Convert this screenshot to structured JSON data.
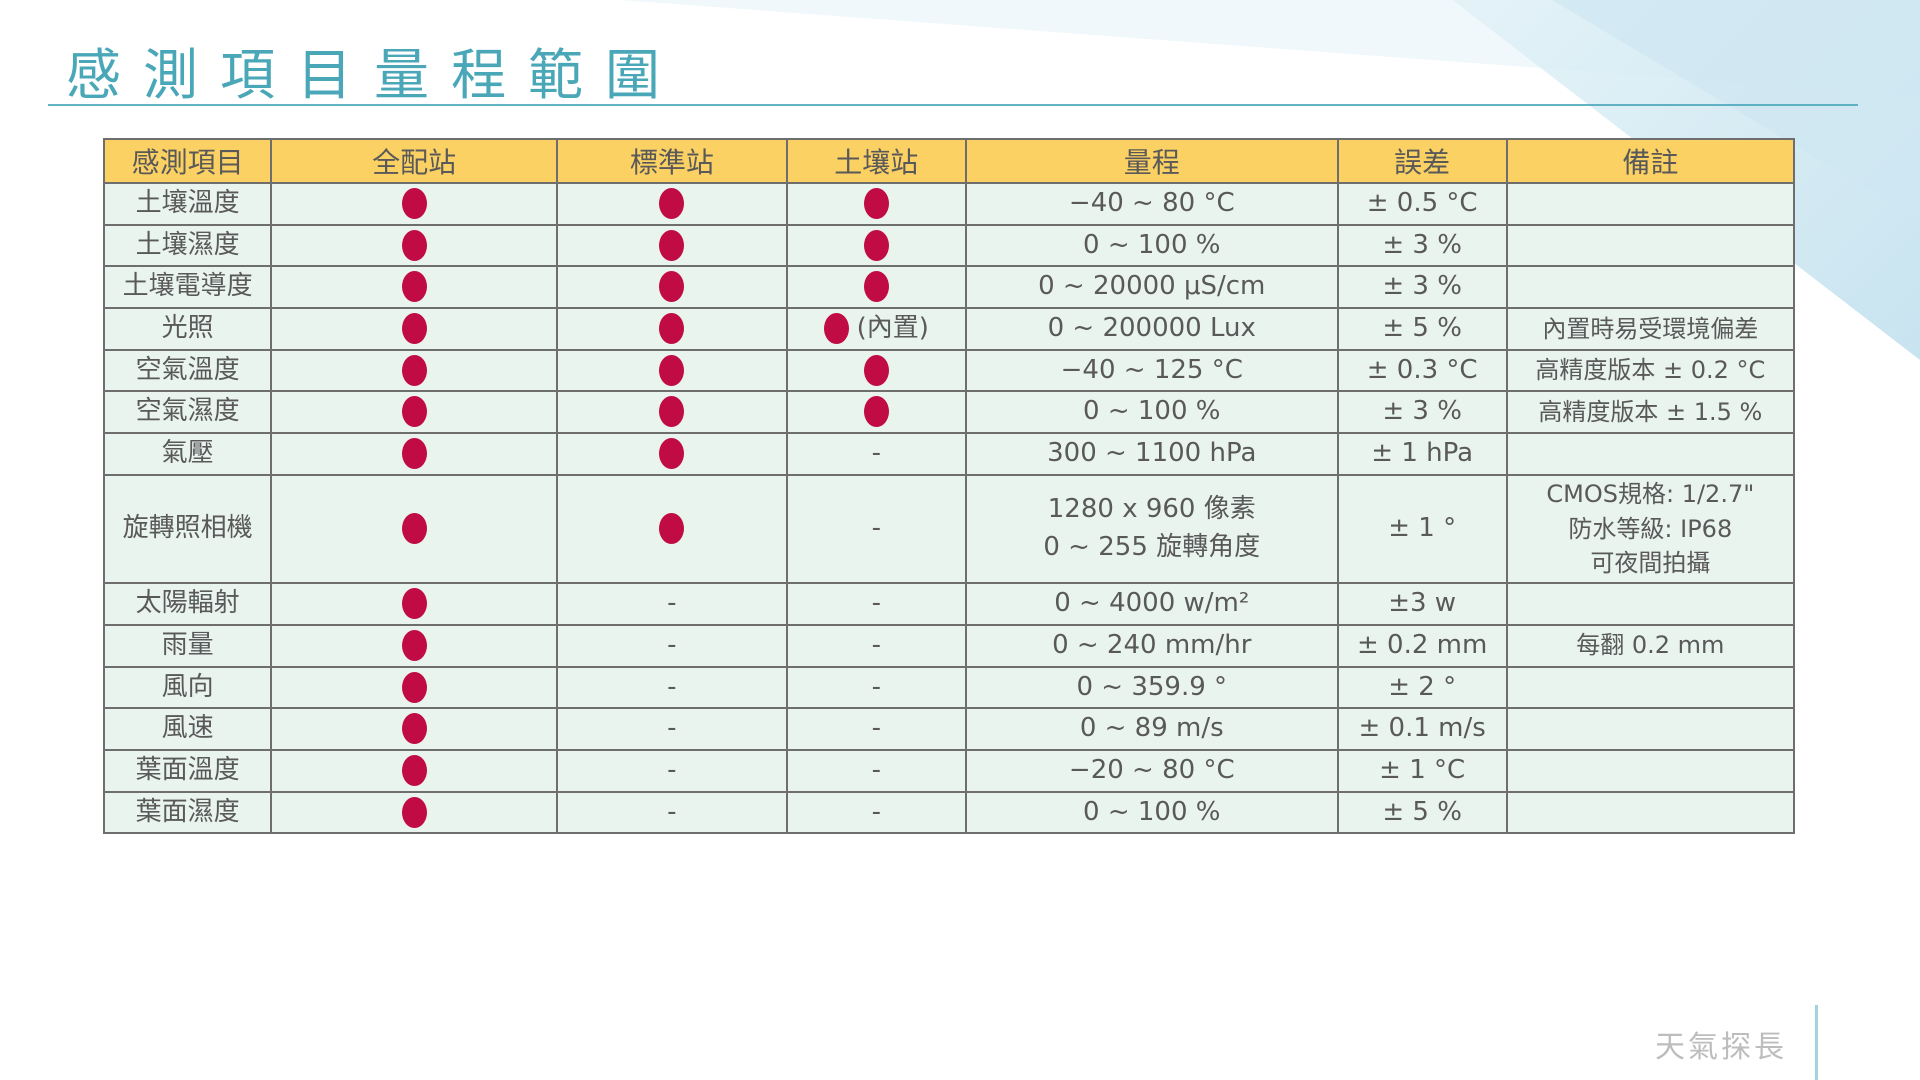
{
  "title": "感測項目量程範圍",
  "footer": {
    "brand": "天氣探長"
  },
  "table": {
    "headers": [
      "感測項目",
      "全配站",
      "標準站",
      "土壤站",
      "量程",
      "誤差",
      "備註"
    ],
    "col_widths": [
      "9.9%",
      "16.9%",
      "13.6%",
      "10.6%",
      "22.0%",
      "10.0%",
      "17.0%"
    ],
    "marker_legend": {
      "dot": "●",
      "none": "-"
    },
    "rows": [
      {
        "item": "土壤溫度",
        "stations": [
          "●",
          "●",
          "●"
        ],
        "range": "−40 ~ 80 °C",
        "error": "± 0.5 °C",
        "note": ""
      },
      {
        "item": "土壤濕度",
        "stations": [
          "●",
          "●",
          "●"
        ],
        "range": "0 ~ 100 %",
        "error": "± 3 %",
        "note": ""
      },
      {
        "item": "土壤電導度",
        "stations": [
          "●",
          "●",
          "●"
        ],
        "range": "0 ~ 20000 μS/cm",
        "error": "± 3 %",
        "note": ""
      },
      {
        "item": "光照",
        "stations": [
          "●",
          "●",
          "● (內置)"
        ],
        "range": "0 ~ 200000 Lux",
        "error": "± 5 %",
        "note": "內置時易受環境偏差"
      },
      {
        "item": "空氣溫度",
        "stations": [
          "●",
          "●",
          "●"
        ],
        "range": "−40 ~ 125 °C",
        "error": "± 0.3 °C",
        "note": "高精度版本 ± 0.2 °C"
      },
      {
        "item": "空氣濕度",
        "stations": [
          "●",
          "●",
          "●"
        ],
        "range": "0 ~ 100 %",
        "error": "± 3 %",
        "note": "高精度版本 ± 1.5 %"
      },
      {
        "item": "氣壓",
        "stations": [
          "●",
          "●",
          "-"
        ],
        "range": "300 ~ 1100 hPa",
        "error": "± 1 hPa",
        "note": ""
      },
      {
        "item": "旋轉照相機",
        "stations": [
          "●",
          "●",
          "-"
        ],
        "range": "1280 x 960 像素\n0 ~ 255 旋轉角度",
        "error": "± 1 °",
        "note": "CMOS規格: 1/2.7\"\n防水等級: IP68\n可夜間拍攝"
      },
      {
        "item": "太陽輻射",
        "stations": [
          "●",
          "-",
          "-"
        ],
        "range": "0 ~ 4000 w/m²",
        "error": "±3 w",
        "note": ""
      },
      {
        "item": "雨量",
        "stations": [
          "●",
          "-",
          "-"
        ],
        "range": "0 ~ 240 mm/hr",
        "error": "± 0.2 mm",
        "note": "每翻 0.2 mm"
      },
      {
        "item": "風向",
        "stations": [
          "●",
          "-",
          "-"
        ],
        "range": "0 ~ 359.9 °",
        "error": "± 2 °",
        "note": ""
      },
      {
        "item": "風速",
        "stations": [
          "●",
          "-",
          "-"
        ],
        "range": "0 ~ 89 m/s",
        "error": "± 0.1 m/s",
        "note": ""
      },
      {
        "item": "葉面溫度",
        "stations": [
          "●",
          "-",
          "-"
        ],
        "range": "−20 ~ 80 °C",
        "error": "± 1 °C",
        "note": ""
      },
      {
        "item": "葉面濕度",
        "stations": [
          "●",
          "-",
          "-"
        ],
        "range": "0 ~ 100 %",
        "error": "± 5 %",
        "note": ""
      }
    ]
  },
  "colors": {
    "title_teal": "#4AA7B8",
    "header_yellow": "#FBD164",
    "cell_mint": "#E9F4EF",
    "dot_red": "#C00B45",
    "grid_gray": "#6E6E6E",
    "footer_text_gray": "#BDBDBD",
    "footer_line_blue": "#A5D2E2"
  }
}
